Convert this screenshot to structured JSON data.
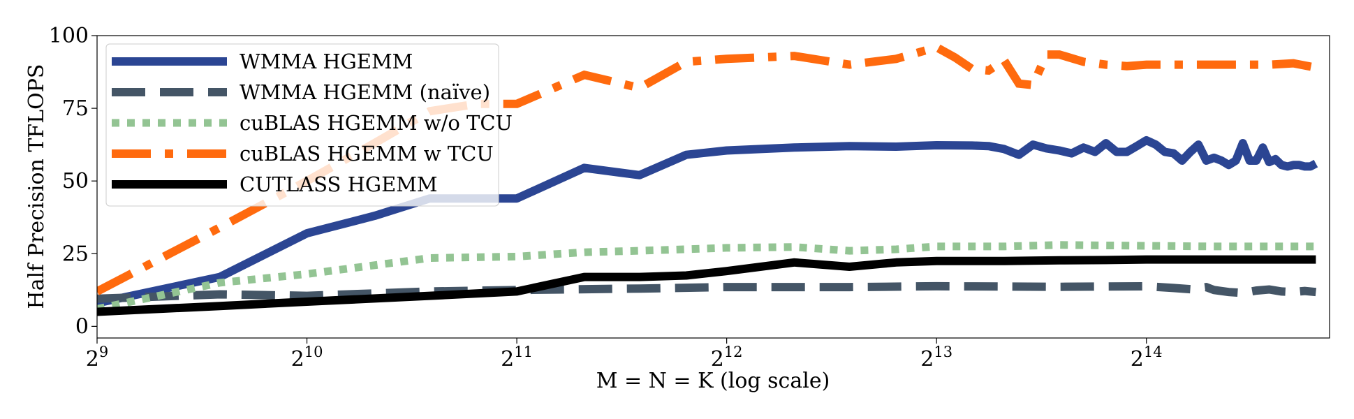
{
  "chart_data": {
    "type": "line",
    "title": "",
    "xlabel": "M = N = K (log scale)",
    "ylabel": "Half Precision TFLOPS",
    "x_scale": "log2",
    "xlim": [
      512,
      30000
    ],
    "ylim": [
      -4,
      100
    ],
    "grid": false,
    "legend_position": "top-left",
    "x_ticks": [
      {
        "value": 512,
        "base": "2",
        "exp": "9"
      },
      {
        "value": 1024,
        "base": "2",
        "exp": "10"
      },
      {
        "value": 2048,
        "base": "2",
        "exp": "11"
      },
      {
        "value": 4096,
        "base": "2",
        "exp": "12"
      },
      {
        "value": 8192,
        "base": "2",
        "exp": "13"
      },
      {
        "value": 16384,
        "base": "2",
        "exp": "14"
      }
    ],
    "y_ticks": [
      {
        "value": 0,
        "label": "0"
      },
      {
        "value": 25,
        "label": "25"
      },
      {
        "value": 50,
        "label": "50"
      },
      {
        "value": 75,
        "label": "75"
      },
      {
        "value": 100,
        "label": "100"
      }
    ],
    "series": [
      {
        "name": "WMMA HGEMM",
        "color": "#2b4593",
        "dash": "solid",
        "points": [
          [
            512,
            8
          ],
          [
            768,
            17
          ],
          [
            1024,
            32
          ],
          [
            1280,
            38
          ],
          [
            1536,
            44
          ],
          [
            1792,
            44
          ],
          [
            2048,
            44
          ],
          [
            2560,
            54.5
          ],
          [
            3072,
            52
          ],
          [
            3584,
            59
          ],
          [
            4096,
            60.5
          ],
          [
            5120,
            61.5
          ],
          [
            6144,
            62
          ],
          [
            7168,
            61.8
          ],
          [
            8192,
            62.3
          ],
          [
            9216,
            62.2
          ],
          [
            9728,
            62
          ],
          [
            10240,
            61
          ],
          [
            10752,
            59
          ],
          [
            11264,
            62.5
          ],
          [
            11776,
            61.2
          ],
          [
            12288,
            60.5
          ],
          [
            12800,
            59.5
          ],
          [
            13312,
            61.5
          ],
          [
            13824,
            60
          ],
          [
            14336,
            63
          ],
          [
            14848,
            60
          ],
          [
            15360,
            60
          ],
          [
            15872,
            62
          ],
          [
            16384,
            64
          ],
          [
            16896,
            62.5
          ],
          [
            17408,
            60
          ],
          [
            17920,
            59.5
          ],
          [
            18432,
            57
          ],
          [
            18944,
            60
          ],
          [
            19456,
            62.5
          ],
          [
            19968,
            57
          ],
          [
            20480,
            58
          ],
          [
            20992,
            57
          ],
          [
            21504,
            55.5
          ],
          [
            22016,
            57
          ],
          [
            22528,
            63
          ],
          [
            23040,
            57
          ],
          [
            23552,
            57
          ],
          [
            24064,
            61.5
          ],
          [
            24576,
            56.5
          ],
          [
            25088,
            57.5
          ],
          [
            25600,
            55.5
          ],
          [
            26112,
            55
          ],
          [
            26624,
            55.5
          ],
          [
            27136,
            55.5
          ],
          [
            27648,
            55
          ],
          [
            28160,
            55
          ],
          [
            28672,
            56
          ]
        ]
      },
      {
        "name": "WMMA HGEMM (naïve)",
        "color": "#445566",
        "dash": "dash",
        "points": [
          [
            512,
            9.5
          ],
          [
            768,
            11
          ],
          [
            1024,
            10.5
          ],
          [
            1536,
            12
          ],
          [
            2048,
            12.5
          ],
          [
            3072,
            13
          ],
          [
            4096,
            13.5
          ],
          [
            6144,
            13.5
          ],
          [
            8192,
            13.8
          ],
          [
            12288,
            13.6
          ],
          [
            16384,
            13.8
          ],
          [
            17920,
            13.2
          ],
          [
            18944,
            12.8
          ],
          [
            19968,
            13.5
          ],
          [
            20480,
            12.5
          ],
          [
            21504,
            11.8
          ],
          [
            22528,
            11.5
          ],
          [
            23552,
            12.3
          ],
          [
            24576,
            12.7
          ],
          [
            25600,
            12
          ],
          [
            26624,
            11.8
          ],
          [
            27648,
            12.2
          ],
          [
            28672,
            11.8
          ]
        ]
      },
      {
        "name": "cuBLAS HGEMM w/o TCU",
        "color": "#93c493",
        "dash": "dot",
        "points": [
          [
            512,
            6
          ],
          [
            768,
            15
          ],
          [
            1024,
            18
          ],
          [
            1536,
            23.5
          ],
          [
            2048,
            24
          ],
          [
            2560,
            25.5
          ],
          [
            3072,
            26
          ],
          [
            4096,
            27
          ],
          [
            5120,
            27.3
          ],
          [
            6144,
            26
          ],
          [
            7168,
            26.5
          ],
          [
            8192,
            27.5
          ],
          [
            10240,
            27.5
          ],
          [
            12288,
            28
          ],
          [
            16384,
            27.7
          ],
          [
            20480,
            27.5
          ],
          [
            24576,
            27.5
          ],
          [
            28672,
            27.5
          ]
        ]
      },
      {
        "name": "cuBLAS HGEMM w TCU",
        "color": "#ff6a0e",
        "dash": "dashdot",
        "points": [
          [
            512,
            12
          ],
          [
            768,
            34
          ],
          [
            1024,
            50
          ],
          [
            1280,
            63
          ],
          [
            1536,
            74
          ],
          [
            1792,
            76.5
          ],
          [
            2048,
            76.5
          ],
          [
            2560,
            86.5
          ],
          [
            3072,
            82
          ],
          [
            3584,
            91
          ],
          [
            4096,
            92
          ],
          [
            5120,
            93
          ],
          [
            6144,
            90
          ],
          [
            7168,
            92
          ],
          [
            8192,
            96
          ],
          [
            8704,
            92.5
          ],
          [
            9216,
            88.5
          ],
          [
            9728,
            88
          ],
          [
            10240,
            91.5
          ],
          [
            10752,
            83.5
          ],
          [
            11264,
            83
          ],
          [
            11776,
            93.5
          ],
          [
            12288,
            93.5
          ],
          [
            13312,
            91
          ],
          [
            14336,
            90
          ],
          [
            15360,
            89.5
          ],
          [
            16384,
            90
          ],
          [
            17408,
            90
          ],
          [
            18432,
            90
          ],
          [
            20480,
            90
          ],
          [
            22528,
            90
          ],
          [
            24576,
            90
          ],
          [
            26624,
            90.5
          ],
          [
            28672,
            89
          ]
        ]
      },
      {
        "name": "CUTLASS HGEMM",
        "color": "#000000",
        "dash": "solid",
        "points": [
          [
            512,
            5
          ],
          [
            768,
            7
          ],
          [
            1024,
            8.5
          ],
          [
            1536,
            10.5
          ],
          [
            2048,
            12
          ],
          [
            2560,
            17
          ],
          [
            3072,
            17
          ],
          [
            3584,
            17.5
          ],
          [
            4096,
            19
          ],
          [
            5120,
            22
          ],
          [
            6144,
            20.5
          ],
          [
            7168,
            22
          ],
          [
            8192,
            22.5
          ],
          [
            9216,
            22.5
          ],
          [
            10240,
            22.5
          ],
          [
            12288,
            22.7
          ],
          [
            14336,
            22.8
          ],
          [
            16384,
            23
          ],
          [
            20480,
            23
          ],
          [
            24576,
            23
          ],
          [
            28672,
            23
          ]
        ]
      }
    ]
  }
}
